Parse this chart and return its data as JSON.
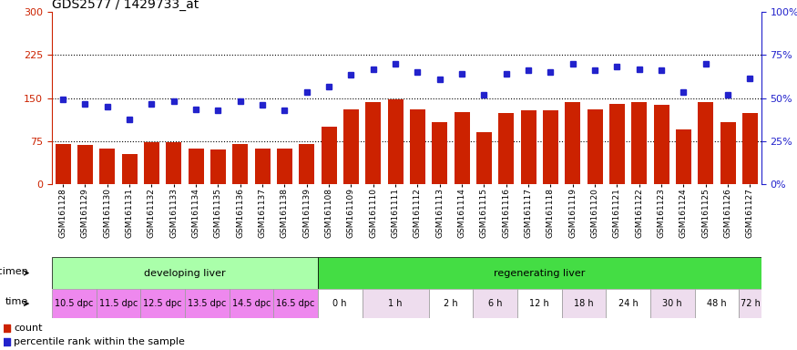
{
  "title": "GDS2577 / 1429733_at",
  "samples": [
    "GSM161128",
    "GSM161129",
    "GSM161130",
    "GSM161131",
    "GSM161132",
    "GSM161133",
    "GSM161134",
    "GSM161135",
    "GSM161136",
    "GSM161137",
    "GSM161138",
    "GSM161139",
    "GSM161108",
    "GSM161109",
    "GSM161110",
    "GSM161111",
    "GSM161112",
    "GSM161113",
    "GSM161114",
    "GSM161115",
    "GSM161116",
    "GSM161117",
    "GSM161118",
    "GSM161119",
    "GSM161120",
    "GSM161121",
    "GSM161122",
    "GSM161123",
    "GSM161124",
    "GSM161125",
    "GSM161126",
    "GSM161127"
  ],
  "counts": [
    70,
    68,
    62,
    52,
    72,
    72,
    62,
    60,
    70,
    62,
    62,
    70,
    100,
    130,
    143,
    148,
    130,
    108,
    125,
    90,
    123,
    128,
    128,
    143,
    130,
    140,
    143,
    138,
    95,
    143,
    108,
    123
  ],
  "percentile": [
    148,
    140,
    135,
    112,
    140,
    145,
    130,
    128,
    145,
    138,
    128,
    160,
    170,
    190,
    200,
    210,
    195,
    182,
    192,
    155,
    193,
    198,
    195,
    210,
    198,
    205,
    200,
    198,
    160,
    210,
    155,
    185
  ],
  "bar_color": "#cc2200",
  "dot_color": "#2222cc",
  "ylim_left": [
    0,
    300
  ],
  "ylim_right": [
    0,
    100
  ],
  "yticks_left": [
    0,
    75,
    150,
    225,
    300
  ],
  "yticks_right": [
    0,
    25,
    50,
    75,
    100
  ],
  "ytick_labels_right": [
    "0%",
    "25%",
    "50%",
    "75%",
    "100%"
  ],
  "hlines": [
    75,
    150,
    225
  ],
  "specimen_groups": [
    {
      "label": "developing liver",
      "start": 0,
      "end": 12,
      "color": "#aaffaa"
    },
    {
      "label": "regenerating liver",
      "start": 12,
      "end": 32,
      "color": "#44dd44"
    }
  ],
  "time_groups": [
    {
      "label": "10.5 dpc",
      "start": 0,
      "end": 2,
      "color": "#ee88ee"
    },
    {
      "label": "11.5 dpc",
      "start": 2,
      "end": 4,
      "color": "#ee88ee"
    },
    {
      "label": "12.5 dpc",
      "start": 4,
      "end": 6,
      "color": "#ee88ee"
    },
    {
      "label": "13.5 dpc",
      "start": 6,
      "end": 8,
      "color": "#ee88ee"
    },
    {
      "label": "14.5 dpc",
      "start": 8,
      "end": 10,
      "color": "#ee88ee"
    },
    {
      "label": "16.5 dpc",
      "start": 10,
      "end": 12,
      "color": "#ee88ee"
    },
    {
      "label": "0 h",
      "start": 12,
      "end": 14,
      "color": "#ffffff"
    },
    {
      "label": "1 h",
      "start": 14,
      "end": 17,
      "color": "#eeddee"
    },
    {
      "label": "2 h",
      "start": 17,
      "end": 19,
      "color": "#ffffff"
    },
    {
      "label": "6 h",
      "start": 19,
      "end": 21,
      "color": "#eeddee"
    },
    {
      "label": "12 h",
      "start": 21,
      "end": 23,
      "color": "#ffffff"
    },
    {
      "label": "18 h",
      "start": 23,
      "end": 25,
      "color": "#eeddee"
    },
    {
      "label": "24 h",
      "start": 25,
      "end": 27,
      "color": "#ffffff"
    },
    {
      "label": "30 h",
      "start": 27,
      "end": 29,
      "color": "#eeddee"
    },
    {
      "label": "48 h",
      "start": 29,
      "end": 31,
      "color": "#ffffff"
    },
    {
      "label": "72 h",
      "start": 31,
      "end": 32,
      "color": "#eeddee"
    }
  ],
  "specimen_label": "specimen",
  "time_label": "time",
  "legend_count_label": "count",
  "legend_pct_label": "percentile rank within the sample",
  "xtick_bg_color": "#cccccc",
  "fig_width": 8.75,
  "fig_height": 3.84,
  "dpi": 100
}
